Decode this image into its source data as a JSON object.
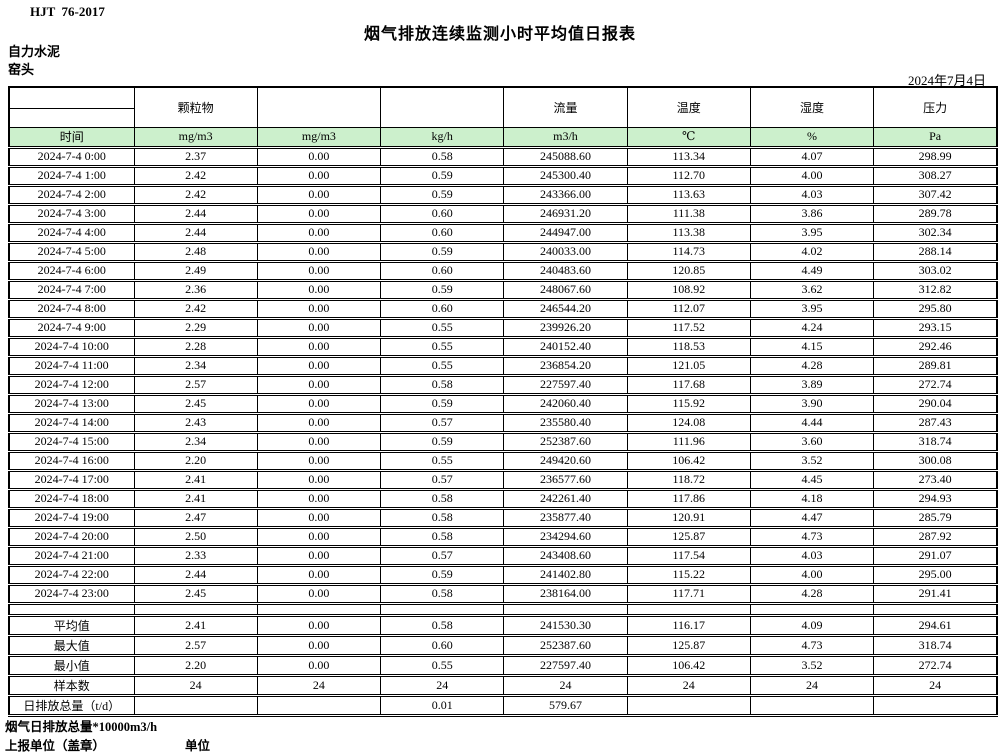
{
  "page": {
    "doc_code": "HJT  76-2017",
    "title": "烟气排放连续监测小时平均值日报表",
    "company": "自力水泥",
    "station": "窑头",
    "date": "2024年7月4日"
  },
  "colors": {
    "header_green": "#ccf0cc",
    "border": "#000000"
  },
  "table": {
    "group_headers": [
      "",
      "颗粒物",
      "",
      "",
      "流量",
      "温度",
      "湿度",
      "压力"
    ],
    "unit_row": [
      "时间",
      "mg/m3",
      "mg/m3",
      "kg/h",
      "m3/h",
      "℃",
      "%",
      "Pa"
    ],
    "rows": [
      [
        "2024-7-4  0:00",
        "2.37",
        "0.00",
        "0.58",
        "245088.60",
        "113.34",
        "4.07",
        "298.99"
      ],
      [
        "2024-7-4  1:00",
        "2.42",
        "0.00",
        "0.59",
        "245300.40",
        "112.70",
        "4.00",
        "308.27"
      ],
      [
        "2024-7-4  2:00",
        "2.42",
        "0.00",
        "0.59",
        "243366.00",
        "113.63",
        "4.03",
        "307.42"
      ],
      [
        "2024-7-4  3:00",
        "2.44",
        "0.00",
        "0.60",
        "246931.20",
        "111.38",
        "3.86",
        "289.78"
      ],
      [
        "2024-7-4  4:00",
        "2.44",
        "0.00",
        "0.60",
        "244947.00",
        "113.38",
        "3.95",
        "302.34"
      ],
      [
        "2024-7-4  5:00",
        "2.48",
        "0.00",
        "0.59",
        "240033.00",
        "114.73",
        "4.02",
        "288.14"
      ],
      [
        "2024-7-4  6:00",
        "2.49",
        "0.00",
        "0.60",
        "240483.60",
        "120.85",
        "4.49",
        "303.02"
      ],
      [
        "2024-7-4  7:00",
        "2.36",
        "0.00",
        "0.59",
        "248067.60",
        "108.92",
        "3.62",
        "312.82"
      ],
      [
        "2024-7-4  8:00",
        "2.42",
        "0.00",
        "0.60",
        "246544.20",
        "112.07",
        "3.95",
        "295.80"
      ],
      [
        "2024-7-4  9:00",
        "2.29",
        "0.00",
        "0.55",
        "239926.20",
        "117.52",
        "4.24",
        "293.15"
      ],
      [
        "2024-7-4 10:00",
        "2.28",
        "0.00",
        "0.55",
        "240152.40",
        "118.53",
        "4.15",
        "292.46"
      ],
      [
        "2024-7-4 11:00",
        "2.34",
        "0.00",
        "0.55",
        "236854.20",
        "121.05",
        "4.28",
        "289.81"
      ],
      [
        "2024-7-4 12:00",
        "2.57",
        "0.00",
        "0.58",
        "227597.40",
        "117.68",
        "3.89",
        "272.74"
      ],
      [
        "2024-7-4 13:00",
        "2.45",
        "0.00",
        "0.59",
        "242060.40",
        "115.92",
        "3.90",
        "290.04"
      ],
      [
        "2024-7-4 14:00",
        "2.43",
        "0.00",
        "0.57",
        "235580.40",
        "124.08",
        "4.44",
        "287.43"
      ],
      [
        "2024-7-4 15:00",
        "2.34",
        "0.00",
        "0.59",
        "252387.60",
        "111.96",
        "3.60",
        "318.74"
      ],
      [
        "2024-7-4 16:00",
        "2.20",
        "0.00",
        "0.55",
        "249420.60",
        "106.42",
        "3.52",
        "300.08"
      ],
      [
        "2024-7-4 17:00",
        "2.41",
        "0.00",
        "0.57",
        "236577.60",
        "118.72",
        "4.45",
        "273.40"
      ],
      [
        "2024-7-4 18:00",
        "2.41",
        "0.00",
        "0.58",
        "242261.40",
        "117.86",
        "4.18",
        "294.93"
      ],
      [
        "2024-7-4 19:00",
        "2.47",
        "0.00",
        "0.58",
        "235877.40",
        "120.91",
        "4.47",
        "285.79"
      ],
      [
        "2024-7-4 20:00",
        "2.50",
        "0.00",
        "0.58",
        "234294.60",
        "125.87",
        "4.73",
        "287.92"
      ],
      [
        "2024-7-4 21:00",
        "2.33",
        "0.00",
        "0.57",
        "243408.60",
        "117.54",
        "4.03",
        "291.07"
      ],
      [
        "2024-7-4 22:00",
        "2.44",
        "0.00",
        "0.59",
        "241402.80",
        "115.22",
        "4.00",
        "295.00"
      ],
      [
        "2024-7-4 23:00",
        "2.45",
        "0.00",
        "0.58",
        "238164.00",
        "117.71",
        "4.28",
        "291.41"
      ]
    ],
    "summary": [
      [
        "平均值",
        "2.41",
        "0.00",
        "0.58",
        "241530.30",
        "116.17",
        "4.09",
        "294.61"
      ],
      [
        "最大值",
        "2.57",
        "0.00",
        "0.60",
        "252387.60",
        "125.87",
        "4.73",
        "318.74"
      ],
      [
        "最小值",
        "2.20",
        "0.00",
        "0.55",
        "227597.40",
        "106.42",
        "3.52",
        "272.74"
      ],
      [
        "样本数",
        "24",
        "24",
        "24",
        "24",
        "24",
        "24",
        "24"
      ],
      [
        "日排放总量（t/d）",
        "",
        "",
        "0.01",
        "579.67",
        "",
        "",
        ""
      ]
    ]
  },
  "footer": {
    "note": "烟气日排放总量*10000m3/h",
    "report_unit_label": "上报单位（盖章）",
    "unit_label": "单位"
  }
}
